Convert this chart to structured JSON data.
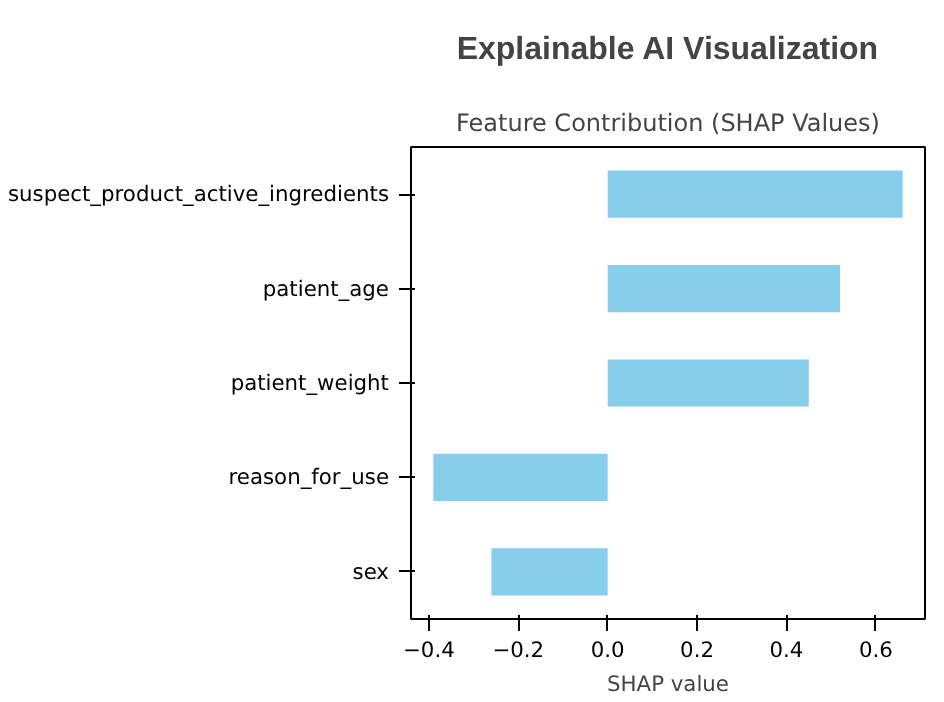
{
  "chart_data": {
    "type": "bar",
    "orientation": "horizontal",
    "title": "Explainable AI Visualization",
    "subtitle": "Feature Contribution (SHAP Values)",
    "xlabel": "SHAP value",
    "categories": [
      "suspect_product_active_ingredients",
      "patient_age",
      "patient_weight",
      "reason_for_use",
      "sex"
    ],
    "values": [
      0.66,
      0.52,
      0.45,
      -0.39,
      -0.26
    ],
    "color": "#87ceeb",
    "xlim": [
      -0.44,
      0.71
    ],
    "xticks": [
      {
        "value": -0.4,
        "label": "−0.4"
      },
      {
        "value": -0.2,
        "label": "−0.2"
      },
      {
        "value": 0,
        "label": "0.0"
      },
      {
        "value": 0.2,
        "label": "0.2"
      },
      {
        "value": 0.4,
        "label": "0.4"
      },
      {
        "value": 0.6,
        "label": "0.6"
      }
    ]
  }
}
